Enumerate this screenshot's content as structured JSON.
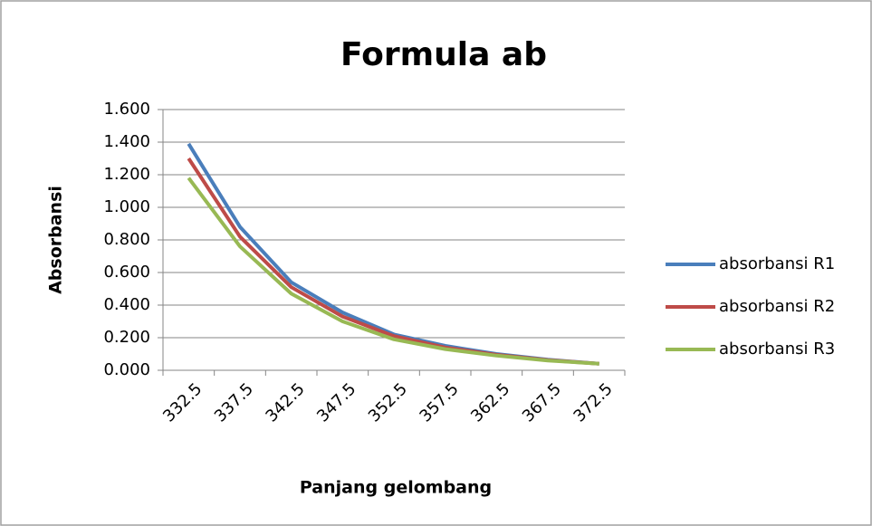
{
  "chart_data": {
    "type": "line",
    "title": "Formula ab",
    "x_label": "Panjang gelombang",
    "y_label": "Absorbansi",
    "categories": [
      "332.5",
      "337.5",
      "342.5",
      "347.5",
      "352.5",
      "357.5",
      "362.5",
      "367.5",
      "372.5"
    ],
    "series": [
      {
        "name": "absorbansi R1",
        "color": "#4a7ebb",
        "values": [
          1.39,
          0.88,
          0.54,
          0.355,
          0.22,
          0.15,
          0.1,
          0.065,
          0.04
        ]
      },
      {
        "name": "absorbansi R2",
        "color": "#be4b48",
        "values": [
          1.3,
          0.82,
          0.51,
          0.33,
          0.21,
          0.14,
          0.095,
          0.063,
          0.04
        ]
      },
      {
        "name": "absorbansi R3",
        "color": "#98b954",
        "values": [
          1.18,
          0.76,
          0.47,
          0.3,
          0.19,
          0.13,
          0.09,
          0.06,
          0.04
        ]
      }
    ],
    "ylim": [
      0,
      1.6
    ],
    "yticks": [
      {
        "value": 0,
        "label": "0.000"
      },
      {
        "value": 0.2,
        "label": "0.200"
      },
      {
        "value": 0.4,
        "label": "0.400"
      },
      {
        "value": 0.6,
        "label": "0.600"
      },
      {
        "value": 0.8,
        "label": "0.800"
      },
      {
        "value": 1.0,
        "label": "1.000"
      },
      {
        "value": 1.2,
        "label": "1.200"
      },
      {
        "value": 1.4,
        "label": "1.400"
      },
      {
        "value": 1.6,
        "label": "1.600"
      }
    ],
    "grid": true,
    "legend": "right"
  }
}
